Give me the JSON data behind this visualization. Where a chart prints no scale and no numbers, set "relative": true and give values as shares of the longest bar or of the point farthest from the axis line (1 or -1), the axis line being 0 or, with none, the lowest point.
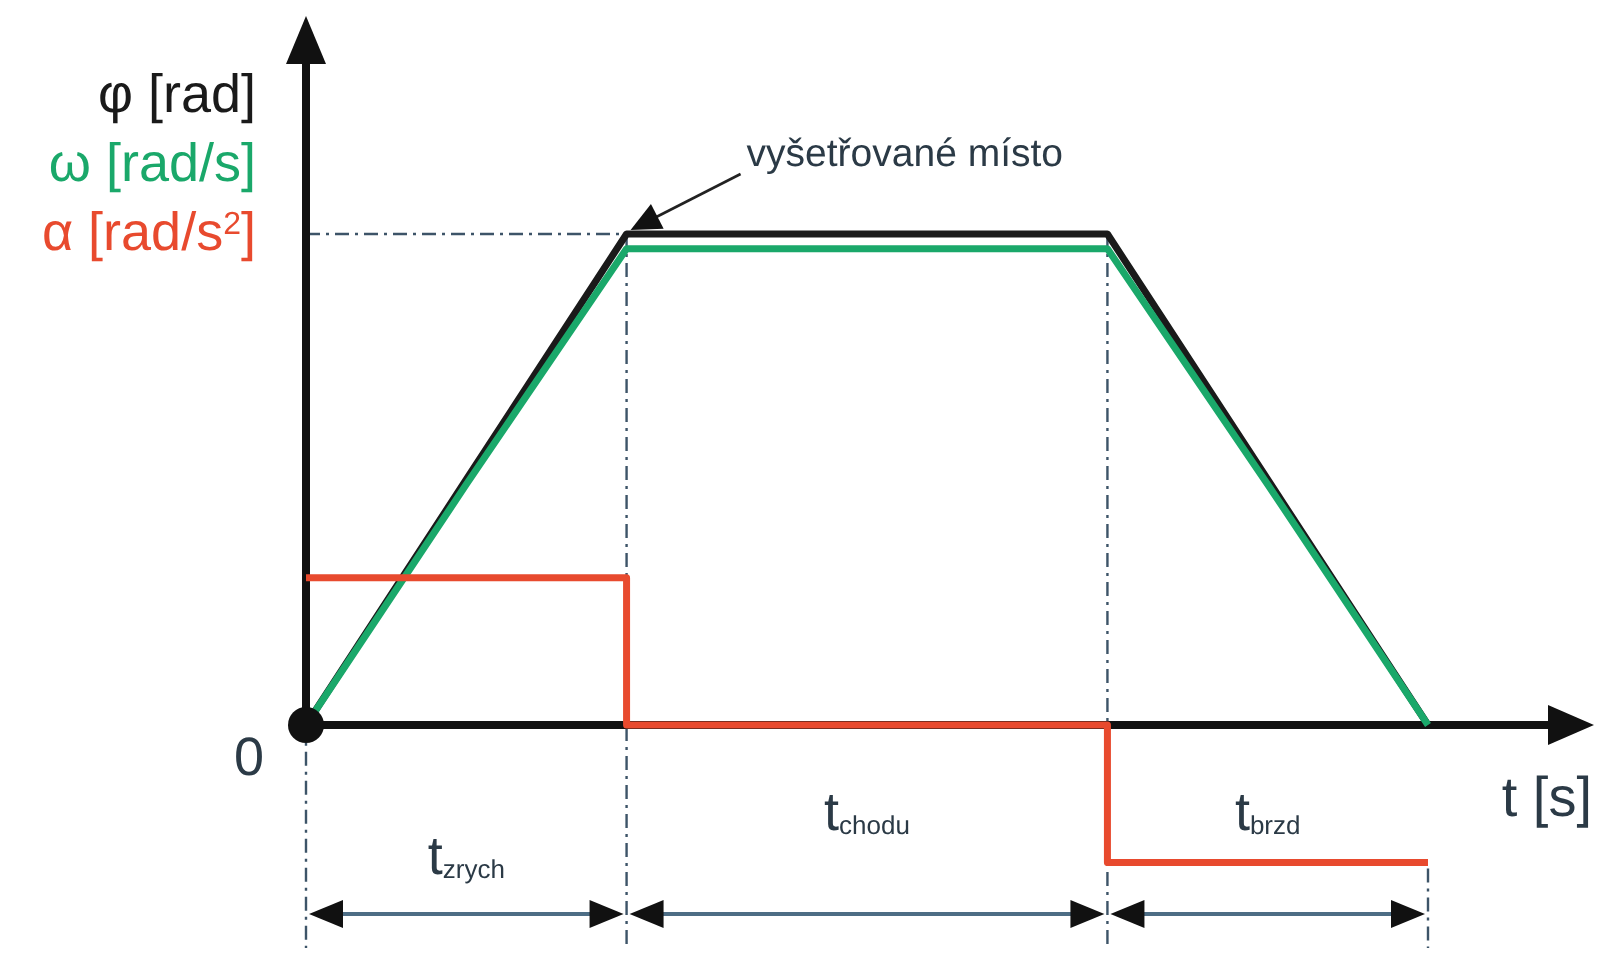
{
  "chart_data": {
    "type": "line",
    "relative": true,
    "categories": [
      null,
      null,
      null,
      null,
      null,
      null,
      null,
      null
    ],
    "xlabel": "t [s]",
    "legend": "top left",
    "series": [
      {
        "name": "φ [rad]",
        "color": "#1a1a1a",
        "values": [
          0,
          0.5,
          1,
          1,
          1,
          1,
          0.5,
          0
        ]
      },
      {
        "name": "ω [rad/s]",
        "color": "#1aa86a",
        "values": [
          0,
          0.49,
          0.97,
          0.97,
          0.97,
          0.97,
          0.49,
          0
        ]
      },
      {
        "name": "α [rad/s$^{2}$]",
        "type": "step",
        "color": "#e84a2e",
        "values": [
          0.3,
          0.3,
          0,
          0,
          0,
          -0.28,
          -0.28,
          -0.28
        ]
      }
    ],
    "ref_lines": [
      {
        "axis": "y",
        "value": 1,
        "color": "#3d5468",
        "line_style": "dashed"
      }
    ],
    "annotations": [
      "t$_{zrych}$",
      "t$_{chodu}$",
      "t$_{brzd}$",
      {
        "text": "vyšetřované místo",
        "y": 1
      },
      "0"
    ]
  }
}
